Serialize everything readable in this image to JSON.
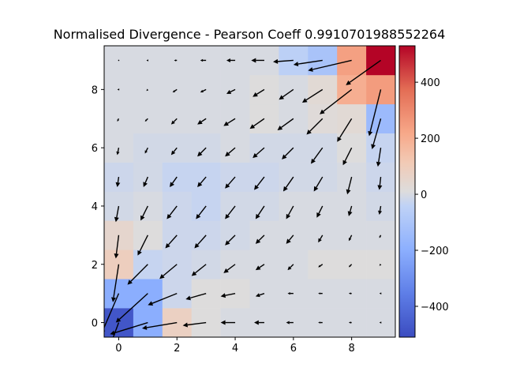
{
  "chart_data": {
    "type": "heatmap",
    "title": "Normalised Divergence - Pearson Coeff 0.9910701988552264",
    "xlabel": "",
    "ylabel": "",
    "xlim": [
      -0.5,
      9.5
    ],
    "ylim": [
      -0.5,
      9.5
    ],
    "x_ticks": [
      0,
      2,
      4,
      6,
      8
    ],
    "y_ticks": [
      0,
      2,
      4,
      6,
      8
    ],
    "x_tick_labels": [
      "0",
      "2",
      "4",
      "6",
      "8"
    ],
    "y_tick_labels": [
      "0",
      "2",
      "4",
      "6",
      "8"
    ],
    "grid": false,
    "colormap": "coolwarm",
    "colorbar": {
      "min": -510,
      "max": 530,
      "ticks": [
        -400,
        -200,
        0,
        200,
        400
      ],
      "tick_labels": [
        "−400",
        "−200",
        "0",
        "200",
        "400"
      ]
    },
    "divergence_rows_bottom_to_top": [
      [
        -480,
        -200,
        80,
        10,
        0,
        0,
        0,
        0,
        0,
        0
      ],
      [
        -200,
        -200,
        -20,
        10,
        10,
        0,
        0,
        0,
        0,
        0
      ],
      [
        90,
        -30,
        -20,
        -10,
        0,
        0,
        0,
        10,
        10,
        10
      ],
      [
        50,
        10,
        -20,
        -20,
        -10,
        0,
        0,
        0,
        0,
        0
      ],
      [
        -10,
        0,
        -20,
        -30,
        -10,
        -10,
        0,
        0,
        0,
        -10
      ],
      [
        -20,
        -10,
        -30,
        -30,
        -20,
        -20,
        -10,
        -10,
        0,
        -20
      ],
      [
        0,
        -10,
        -10,
        -10,
        0,
        -10,
        -10,
        -10,
        10,
        -30
      ],
      [
        0,
        0,
        0,
        0,
        0,
        10,
        0,
        20,
        30,
        -150
      ],
      [
        0,
        0,
        0,
        0,
        0,
        10,
        0,
        30,
        200,
        250
      ],
      [
        0,
        0,
        0,
        0,
        0,
        0,
        -50,
        -110,
        240,
        530
      ]
    ],
    "quiver": [
      {
        "x": 0,
        "y": 0,
        "u": -0.3,
        "v": -0.8
      },
      {
        "x": 1,
        "y": 0,
        "u": -1.3,
        "v": -0.4
      },
      {
        "x": 2,
        "y": 0,
        "u": -1.2,
        "v": -0.2
      },
      {
        "x": 3,
        "y": 0,
        "u": -0.8,
        "v": -0.1
      },
      {
        "x": 4,
        "y": 0,
        "u": -0.5,
        "v": 0
      },
      {
        "x": 5,
        "y": 0,
        "u": -0.35,
        "v": 0
      },
      {
        "x": 6,
        "y": 0,
        "u": -0.25,
        "v": 0
      },
      {
        "x": 7,
        "y": 0,
        "u": -0.15,
        "v": 0
      },
      {
        "x": 8,
        "y": 0,
        "u": -0.1,
        "v": 0
      },
      {
        "x": 9,
        "y": 0,
        "u": -0.05,
        "v": 0
      },
      {
        "x": 0,
        "y": 1,
        "u": -0.6,
        "v": -1.4
      },
      {
        "x": 1,
        "y": 1,
        "u": -1.1,
        "v": -1.0
      },
      {
        "x": 2,
        "y": 1,
        "u": -1.0,
        "v": -0.4
      },
      {
        "x": 3,
        "y": 1,
        "u": -0.7,
        "v": -0.2
      },
      {
        "x": 4,
        "y": 1,
        "u": -0.5,
        "v": -0.1
      },
      {
        "x": 5,
        "y": 1,
        "u": -0.3,
        "v": -0.1
      },
      {
        "x": 6,
        "y": 1,
        "u": -0.2,
        "v": 0
      },
      {
        "x": 7,
        "y": 1,
        "u": -0.15,
        "v": 0
      },
      {
        "x": 8,
        "y": 1,
        "u": -0.1,
        "v": 0
      },
      {
        "x": 9,
        "y": 1,
        "u": -0.05,
        "v": 0
      },
      {
        "x": 0,
        "y": 2,
        "u": -0.2,
        "v": -1.3
      },
      {
        "x": 1,
        "y": 2,
        "u": -0.7,
        "v": -0.7
      },
      {
        "x": 2,
        "y": 2,
        "u": -0.6,
        "v": -0.5
      },
      {
        "x": 3,
        "y": 2,
        "u": -0.5,
        "v": -0.4
      },
      {
        "x": 4,
        "y": 2,
        "u": -0.4,
        "v": -0.3
      },
      {
        "x": 5,
        "y": 2,
        "u": -0.3,
        "v": -0.2
      },
      {
        "x": 6,
        "y": 2,
        "u": -0.2,
        "v": -0.2
      },
      {
        "x": 7,
        "y": 2,
        "u": -0.15,
        "v": -0.1
      },
      {
        "x": 8,
        "y": 2,
        "u": -0.1,
        "v": -0.1
      },
      {
        "x": 9,
        "y": 2,
        "u": -0.05,
        "v": -0.05
      },
      {
        "x": 0,
        "y": 3,
        "u": -0.1,
        "v": -0.8
      },
      {
        "x": 1,
        "y": 3,
        "u": -0.35,
        "v": -0.7
      },
      {
        "x": 2,
        "y": 3,
        "u": -0.4,
        "v": -0.45
      },
      {
        "x": 3,
        "y": 3,
        "u": -0.4,
        "v": -0.45
      },
      {
        "x": 4,
        "y": 3,
        "u": -0.35,
        "v": -0.35
      },
      {
        "x": 5,
        "y": 3,
        "u": -0.3,
        "v": -0.3
      },
      {
        "x": 6,
        "y": 3,
        "u": -0.25,
        "v": -0.3
      },
      {
        "x": 7,
        "y": 3,
        "u": -0.15,
        "v": -0.25
      },
      {
        "x": 8,
        "y": 3,
        "u": -0.1,
        "v": -0.2
      },
      {
        "x": 9,
        "y": 3,
        "u": -0.05,
        "v": -0.1
      },
      {
        "x": 0,
        "y": 4,
        "u": -0.1,
        "v": -0.55
      },
      {
        "x": 1,
        "y": 4,
        "u": -0.25,
        "v": -0.5
      },
      {
        "x": 2,
        "y": 4,
        "u": -0.35,
        "v": -0.45
      },
      {
        "x": 3,
        "y": 4,
        "u": -0.35,
        "v": -0.45
      },
      {
        "x": 4,
        "y": 4,
        "u": -0.35,
        "v": -0.45
      },
      {
        "x": 5,
        "y": 4,
        "u": -0.3,
        "v": -0.45
      },
      {
        "x": 6,
        "y": 4,
        "u": -0.25,
        "v": -0.45
      },
      {
        "x": 7,
        "y": 4,
        "u": -0.2,
        "v": -0.4
      },
      {
        "x": 8,
        "y": 4,
        "u": -0.1,
        "v": -0.35
      },
      {
        "x": 9,
        "y": 4,
        "u": -0.05,
        "v": -0.3
      },
      {
        "x": 0,
        "y": 5,
        "u": -0.05,
        "v": -0.35
      },
      {
        "x": 1,
        "y": 5,
        "u": -0.15,
        "v": -0.35
      },
      {
        "x": 2,
        "y": 5,
        "u": -0.25,
        "v": -0.35
      },
      {
        "x": 3,
        "y": 5,
        "u": -0.3,
        "v": -0.35
      },
      {
        "x": 4,
        "y": 5,
        "u": -0.35,
        "v": -0.4
      },
      {
        "x": 5,
        "y": 5,
        "u": -0.35,
        "v": -0.45
      },
      {
        "x": 6,
        "y": 5,
        "u": -0.35,
        "v": -0.5
      },
      {
        "x": 7,
        "y": 5,
        "u": -0.3,
        "v": -0.5
      },
      {
        "x": 8,
        "y": 5,
        "u": -0.15,
        "v": -0.6
      },
      {
        "x": 9,
        "y": 5,
        "u": -0.05,
        "v": -0.45
      },
      {
        "x": 0,
        "y": 6,
        "u": -0.05,
        "v": -0.25
      },
      {
        "x": 1,
        "y": 6,
        "u": -0.1,
        "v": -0.2
      },
      {
        "x": 2,
        "y": 6,
        "u": -0.2,
        "v": -0.25
      },
      {
        "x": 3,
        "y": 6,
        "u": -0.3,
        "v": -0.3
      },
      {
        "x": 4,
        "y": 6,
        "u": -0.35,
        "v": -0.3
      },
      {
        "x": 5,
        "y": 6,
        "u": -0.4,
        "v": -0.35
      },
      {
        "x": 6,
        "y": 6,
        "u": -0.4,
        "v": -0.4
      },
      {
        "x": 7,
        "y": 6,
        "u": -0.4,
        "v": -0.55
      },
      {
        "x": 8,
        "y": 6,
        "u": -0.3,
        "v": -0.6
      },
      {
        "x": 9,
        "y": 6,
        "u": -0.1,
        "v": -0.65
      },
      {
        "x": 0,
        "y": 7,
        "u": -0.05,
        "v": -0.1
      },
      {
        "x": 1,
        "y": 7,
        "u": -0.1,
        "v": -0.1
      },
      {
        "x": 2,
        "y": 7,
        "u": -0.2,
        "v": -0.2
      },
      {
        "x": 3,
        "y": 7,
        "u": -0.3,
        "v": -0.2
      },
      {
        "x": 4,
        "y": 7,
        "u": -0.4,
        "v": -0.25
      },
      {
        "x": 5,
        "y": 7,
        "u": -0.5,
        "v": -0.35
      },
      {
        "x": 6,
        "y": 7,
        "u": -0.55,
        "v": -0.4
      },
      {
        "x": 7,
        "y": 7,
        "u": -0.55,
        "v": -0.55
      },
      {
        "x": 8,
        "y": 7,
        "u": -0.5,
        "v": -0.8
      },
      {
        "x": 9,
        "y": 7,
        "u": -0.3,
        "v": -1.05
      },
      {
        "x": 0,
        "y": 8,
        "u": -0.05,
        "v": 0
      },
      {
        "x": 1,
        "y": 8,
        "u": -0.05,
        "v": -0.05
      },
      {
        "x": 2,
        "y": 8,
        "u": -0.15,
        "v": -0.1
      },
      {
        "x": 3,
        "y": 8,
        "u": -0.2,
        "v": -0.1
      },
      {
        "x": 4,
        "y": 8,
        "u": -0.3,
        "v": -0.15
      },
      {
        "x": 5,
        "y": 8,
        "u": -0.4,
        "v": -0.25
      },
      {
        "x": 6,
        "y": 8,
        "u": -0.5,
        "v": -0.35
      },
      {
        "x": 7,
        "y": 8,
        "u": -0.7,
        "v": -0.45
      },
      {
        "x": 8,
        "y": 8,
        "u": -1.1,
        "v": -0.85
      },
      {
        "x": 9,
        "y": 8,
        "u": -0.4,
        "v": -1.6
      },
      {
        "x": 0,
        "y": 9,
        "u": 0,
        "v": 0
      },
      {
        "x": 1,
        "y": 9,
        "u": -0.05,
        "v": 0
      },
      {
        "x": 2,
        "y": 9,
        "u": -0.1,
        "v": 0
      },
      {
        "x": 3,
        "y": 9,
        "u": -0.2,
        "v": 0
      },
      {
        "x": 4,
        "y": 9,
        "u": -0.3,
        "v": 0
      },
      {
        "x": 5,
        "y": 9,
        "u": -0.45,
        "v": 0
      },
      {
        "x": 6,
        "y": 9,
        "u": -0.7,
        "v": -0.05
      },
      {
        "x": 7,
        "y": 9,
        "u": -1.0,
        "v": -0.15
      },
      {
        "x": 8,
        "y": 9,
        "u": -1.5,
        "v": -0.35
      },
      {
        "x": 9,
        "y": 9,
        "u": -1.2,
        "v": -0.85
      }
    ]
  }
}
